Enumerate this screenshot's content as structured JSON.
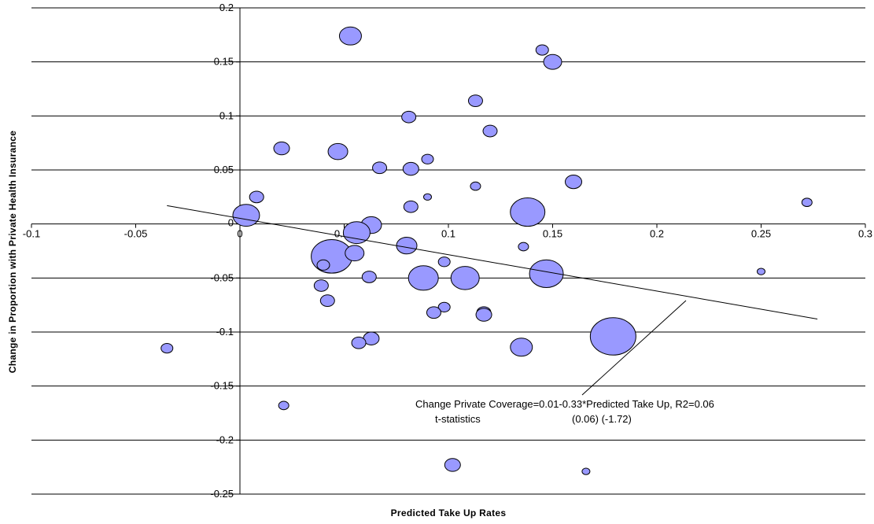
{
  "chart_data": {
    "type": "scatter",
    "xlabel": "Predicted Take Up Rates",
    "ylabel": "Change in Proportion with Private Health Insurance",
    "xlim": [
      -0.1,
      0.3
    ],
    "ylim": [
      -0.25,
      0.2
    ],
    "x_ticks": [
      "-0.1",
      "-0.05",
      "0",
      "0.05",
      "0.1",
      "0.15",
      "0.2",
      "0.25",
      "0.3"
    ],
    "y_ticks": [
      "0.2",
      "0.15",
      "0.1",
      "0.05",
      "0",
      "-0.05",
      "-0.1",
      "-0.15",
      "-0.2",
      "-0.25"
    ],
    "grid": "horizontal",
    "bubble_color": "#9999ff",
    "bubble_edge_color": "#000000",
    "points": [
      {
        "x": 0.053,
        "y": 0.174,
        "size": 28
      },
      {
        "x": 0.145,
        "y": 0.161,
        "size": 16
      },
      {
        "x": 0.15,
        "y": 0.15,
        "size": 23
      },
      {
        "x": 0.113,
        "y": 0.114,
        "size": 18
      },
      {
        "x": 0.081,
        "y": 0.099,
        "size": 18
      },
      {
        "x": 0.12,
        "y": 0.086,
        "size": 18
      },
      {
        "x": 0.02,
        "y": 0.07,
        "size": 20
      },
      {
        "x": 0.047,
        "y": 0.067,
        "size": 25
      },
      {
        "x": 0.09,
        "y": 0.06,
        "size": 15
      },
      {
        "x": 0.067,
        "y": 0.052,
        "size": 18
      },
      {
        "x": 0.082,
        "y": 0.051,
        "size": 20
      },
      {
        "x": 0.16,
        "y": 0.039,
        "size": 21
      },
      {
        "x": 0.113,
        "y": 0.035,
        "size": 13
      },
      {
        "x": 0.008,
        "y": 0.025,
        "size": 18
      },
      {
        "x": 0.09,
        "y": 0.025,
        "size": 10
      },
      {
        "x": 0.082,
        "y": 0.016,
        "size": 18
      },
      {
        "x": 0.138,
        "y": 0.011,
        "size": 44
      },
      {
        "x": 0.272,
        "y": 0.02,
        "size": 13
      },
      {
        "x": 0.003,
        "y": 0.008,
        "size": 34
      },
      {
        "x": 0.063,
        "y": -0.001,
        "size": 26
      },
      {
        "x": 0.056,
        "y": -0.008,
        "size": 34
      },
      {
        "x": 0.08,
        "y": -0.02,
        "size": 26
      },
      {
        "x": 0.044,
        "y": -0.03,
        "size": 52
      },
      {
        "x": 0.055,
        "y": -0.027,
        "size": 24
      },
      {
        "x": 0.136,
        "y": -0.021,
        "size": 13
      },
      {
        "x": 0.04,
        "y": -0.038,
        "size": 16
      },
      {
        "x": 0.098,
        "y": -0.035,
        "size": 15
      },
      {
        "x": 0.062,
        "y": -0.049,
        "size": 18
      },
      {
        "x": 0.088,
        "y": -0.05,
        "size": 38
      },
      {
        "x": 0.108,
        "y": -0.05,
        "size": 36
      },
      {
        "x": 0.147,
        "y": -0.046,
        "size": 43
      },
      {
        "x": 0.25,
        "y": -0.044,
        "size": 10
      },
      {
        "x": 0.039,
        "y": -0.057,
        "size": 18
      },
      {
        "x": 0.042,
        "y": -0.071,
        "size": 18
      },
      {
        "x": 0.098,
        "y": -0.077,
        "size": 15
      },
      {
        "x": 0.093,
        "y": -0.082,
        "size": 18
      },
      {
        "x": 0.117,
        "y": -0.082,
        "size": 18
      },
      {
        "x": 0.117,
        "y": -0.084,
        "size": 20
      },
      {
        "x": 0.179,
        "y": -0.104,
        "size": 58
      },
      {
        "x": 0.063,
        "y": -0.106,
        "size": 20
      },
      {
        "x": 0.057,
        "y": -0.11,
        "size": 18
      },
      {
        "x": 0.135,
        "y": -0.114,
        "size": 28
      },
      {
        "x": -0.035,
        "y": -0.115,
        "size": 15
      },
      {
        "x": 0.021,
        "y": -0.168,
        "size": 13
      },
      {
        "x": 0.102,
        "y": -0.223,
        "size": 20
      },
      {
        "x": 0.166,
        "y": -0.229,
        "size": 10
      }
    ],
    "trendline": {
      "x": [
        -0.035,
        0.277
      ],
      "y": [
        0.017,
        -0.088
      ]
    },
    "annotation": {
      "line1": "Change Private Coverage=0.01-0.33*Predicted Take Up, R2=0.06",
      "line2_label": "t-statistics",
      "line2_values": "(0.06) (-1.72)"
    }
  }
}
